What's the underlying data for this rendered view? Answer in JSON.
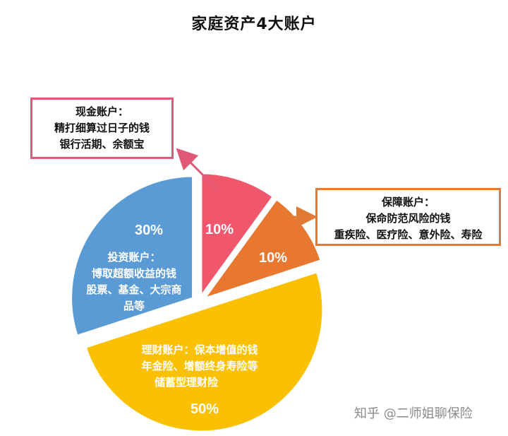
{
  "chart_data": {
    "type": "pie",
    "title": "家庭资产4大账户",
    "slices": [
      {
        "value": 10,
        "label": "10%",
        "color": "#f0566c",
        "name": "现金账户："
      },
      {
        "value": 10,
        "label": "10%",
        "color": "#e8782f",
        "name": "保障账户："
      },
      {
        "value": 50,
        "label": "50%",
        "color": "#fbc000",
        "name": "理财账户："
      },
      {
        "value": 30,
        "label": "30%",
        "color": "#5b9bd5",
        "name": "投资账户："
      }
    ]
  },
  "callouts": {
    "cash": {
      "title": "现金账户：",
      "line1": "精打细算过日子的钱",
      "line2": "银行活期、余额宝"
    },
    "insurance": {
      "title": "保障账户：",
      "line1": "保命防范风险的钱",
      "line2": "重疾险、医疗险、意外险、寿险"
    }
  },
  "inner_labels": {
    "invest": {
      "title": "投资账户：",
      "line1": "博取超额收益的钱",
      "line2": "股票、基金、大宗商",
      "line3": "品等"
    },
    "finance": {
      "title": "理财账户：保本增值的钱",
      "line1": "年金险、增额终身寿险等",
      "line2": "储蓄型理财险"
    }
  },
  "watermark": "知乎 @二师姐聊保险"
}
